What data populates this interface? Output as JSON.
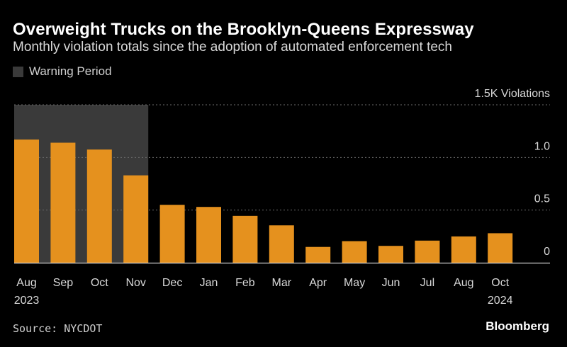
{
  "title": "Overweight Trucks on the Brooklyn-Queens Expressway",
  "subtitle": "Monthly violation totals since the adoption of automated enforcement tech",
  "legend": {
    "label": "Warning Period"
  },
  "source": "Source: NYCDOT",
  "brand": "Bloomberg",
  "colors": {
    "bar": "#e5911e",
    "warning_band": "#3a3a3a",
    "background": "#000000",
    "grid": "#6b6b6b",
    "axis": "#cfcfcf"
  },
  "chart_data": {
    "type": "bar",
    "title": "Overweight Trucks on the Brooklyn-Queens Expressway",
    "subtitle": "Monthly violation totals since the adoption of automated enforcement tech",
    "categories": [
      "Aug",
      "Sep",
      "Oct",
      "Nov",
      "Dec",
      "Jan",
      "Feb",
      "Mar",
      "Apr",
      "May",
      "Jun",
      "Jul",
      "Aug",
      "Oct"
    ],
    "year_labels": [
      "2023",
      "",
      "",
      "",
      "",
      "",
      "",
      "",
      "",
      "",
      "",
      "",
      "",
      "2024"
    ],
    "values": [
      1170,
      1140,
      1075,
      830,
      550,
      530,
      445,
      355,
      150,
      205,
      160,
      210,
      250,
      280
    ],
    "ylim": [
      0,
      1500
    ],
    "yticks": [
      0,
      0.5,
      1.0,
      1.5
    ],
    "ytick_labels": [
      "0",
      "0.5",
      "1.0",
      "1.5K"
    ],
    "yunit_label": "Violations",
    "highlight": {
      "label": "Warning Period",
      "first_index": 0,
      "last_index": 3
    },
    "grid": true,
    "legend_position": "top-left"
  }
}
